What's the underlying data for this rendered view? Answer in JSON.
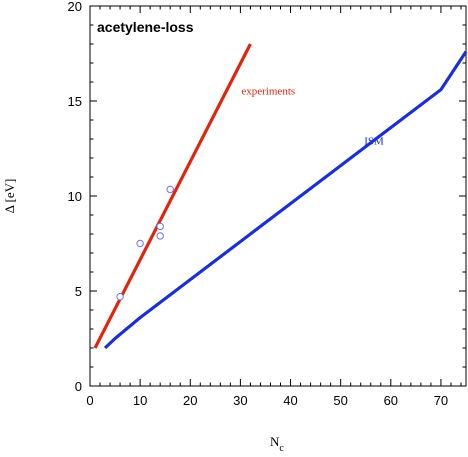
{
  "chart_data": {
    "type": "line",
    "title": "acetylene-loss",
    "xlabel": "N",
    "xlabel_subscript": "c",
    "ylabel": "Δ [eV]",
    "xlim": [
      0,
      75
    ],
    "ylim": [
      0,
      20
    ],
    "x_ticks": [
      0,
      10,
      20,
      30,
      40,
      50,
      60,
      70
    ],
    "y_ticks": [
      0,
      5,
      10,
      15,
      20
    ],
    "grid": false,
    "legend": "none",
    "series": [
      {
        "name": "experiments",
        "kind": "line",
        "color": "#e0250f",
        "x": [
          1,
          32
        ],
        "y": [
          2.0,
          18.0
        ]
      },
      {
        "name": "ISM",
        "kind": "line",
        "color": "#1a2fd6",
        "x": [
          3,
          5,
          10,
          15,
          20,
          30,
          40,
          50,
          60,
          70,
          75
        ],
        "y": [
          2.0,
          2.5,
          3.6,
          4.6,
          5.6,
          7.6,
          9.6,
          11.6,
          13.6,
          15.6,
          17.6
        ]
      },
      {
        "kind": "scatter",
        "color": "#6677ee",
        "x": [
          6,
          10,
          14,
          14,
          16
        ],
        "y": [
          4.7,
          7.5,
          8.4,
          7.9,
          10.35
        ]
      }
    ]
  }
}
